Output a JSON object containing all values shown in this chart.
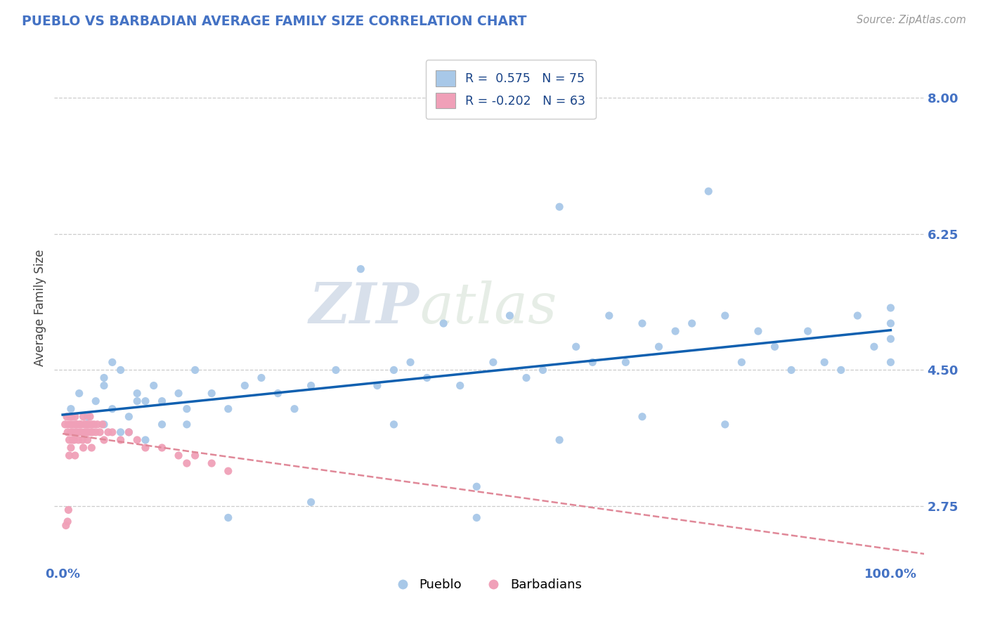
{
  "title": "PUEBLO VS BARBADIAN AVERAGE FAMILY SIZE CORRELATION CHART",
  "source": "Source: ZipAtlas.com",
  "ylabel": "Average Family Size",
  "yticks": [
    2.75,
    4.5,
    6.25,
    8.0
  ],
  "watermark_part1": "ZIP",
  "watermark_part2": "atlas",
  "pueblo_color": "#a8c8e8",
  "barbadian_color": "#f0a0b8",
  "pueblo_line_color": "#1060b0",
  "barbadian_line_color": "#e08898",
  "title_color": "#4472c4",
  "axis_color": "#4472c4",
  "grid_color": "#cccccc",
  "background_color": "#ffffff",
  "legend_r1": "R =  0.575   N = 75",
  "legend_r2": "R = -0.202   N = 63",
  "legend_color1": "#a8c8e8",
  "legend_color2": "#f0a0b8",
  "bottom_label1": "Pueblo",
  "bottom_label2": "Barbadians",
  "pueblo_x": [
    0.01,
    0.02,
    0.03,
    0.04,
    0.05,
    0.05,
    0.06,
    0.07,
    0.08,
    0.09,
    0.1,
    0.11,
    0.12,
    0.14,
    0.15,
    0.16,
    0.18,
    0.2,
    0.22,
    0.24,
    0.26,
    0.28,
    0.3,
    0.33,
    0.36,
    0.38,
    0.4,
    0.42,
    0.44,
    0.46,
    0.48,
    0.5,
    0.52,
    0.54,
    0.56,
    0.58,
    0.6,
    0.62,
    0.64,
    0.66,
    0.68,
    0.7,
    0.72,
    0.74,
    0.76,
    0.78,
    0.8,
    0.82,
    0.84,
    0.86,
    0.88,
    0.9,
    0.92,
    0.94,
    0.96,
    0.98,
    1.0,
    1.0,
    1.0,
    1.0,
    0.05,
    0.06,
    0.07,
    0.08,
    0.09,
    0.1,
    0.12,
    0.15,
    0.2,
    0.3,
    0.4,
    0.5,
    0.6,
    0.7,
    0.8
  ],
  "pueblo_y": [
    4.0,
    4.2,
    3.9,
    4.1,
    4.3,
    3.8,
    4.0,
    4.5,
    3.7,
    4.2,
    4.1,
    4.3,
    3.8,
    4.2,
    4.0,
    4.5,
    4.2,
    4.0,
    4.3,
    4.4,
    4.2,
    4.0,
    4.3,
    4.5,
    5.8,
    4.3,
    4.5,
    4.6,
    4.4,
    5.1,
    4.3,
    3.0,
    4.6,
    5.2,
    4.4,
    4.5,
    6.6,
    4.8,
    4.6,
    5.2,
    4.6,
    5.1,
    4.8,
    5.0,
    5.1,
    6.8,
    5.2,
    4.6,
    5.0,
    4.8,
    4.5,
    5.0,
    4.6,
    4.5,
    5.2,
    4.8,
    5.3,
    4.6,
    5.1,
    4.9,
    4.4,
    4.6,
    3.7,
    3.9,
    4.1,
    3.6,
    4.1,
    3.8,
    2.6,
    2.8,
    3.8,
    2.6,
    3.6,
    3.9,
    3.8
  ],
  "barbadian_x": [
    0.003,
    0.005,
    0.006,
    0.007,
    0.008,
    0.009,
    0.01,
    0.01,
    0.011,
    0.012,
    0.013,
    0.014,
    0.015,
    0.015,
    0.016,
    0.017,
    0.018,
    0.019,
    0.02,
    0.021,
    0.022,
    0.023,
    0.024,
    0.025,
    0.026,
    0.027,
    0.028,
    0.029,
    0.03,
    0.031,
    0.032,
    0.033,
    0.034,
    0.035,
    0.036,
    0.038,
    0.04,
    0.042,
    0.045,
    0.048,
    0.05,
    0.055,
    0.06,
    0.07,
    0.08,
    0.09,
    0.1,
    0.12,
    0.14,
    0.15,
    0.16,
    0.18,
    0.2,
    0.025,
    0.03,
    0.035,
    0.01,
    0.012,
    0.015,
    0.008,
    0.006,
    0.007,
    0.004
  ],
  "barbadian_y": [
    3.8,
    3.9,
    3.7,
    3.8,
    3.6,
    3.9,
    3.7,
    3.8,
    3.9,
    3.7,
    3.8,
    3.6,
    3.9,
    3.7,
    3.8,
    3.7,
    3.8,
    3.6,
    3.7,
    3.8,
    3.8,
    3.7,
    3.6,
    3.9,
    3.8,
    3.7,
    3.8,
    3.7,
    3.8,
    3.7,
    3.8,
    3.9,
    3.7,
    3.8,
    3.7,
    3.8,
    3.7,
    3.8,
    3.7,
    3.8,
    3.6,
    3.7,
    3.7,
    3.6,
    3.7,
    3.6,
    3.5,
    3.5,
    3.4,
    3.3,
    3.4,
    3.3,
    3.2,
    3.5,
    3.6,
    3.5,
    3.5,
    3.6,
    3.4,
    3.4,
    2.55,
    2.7,
    2.5
  ]
}
